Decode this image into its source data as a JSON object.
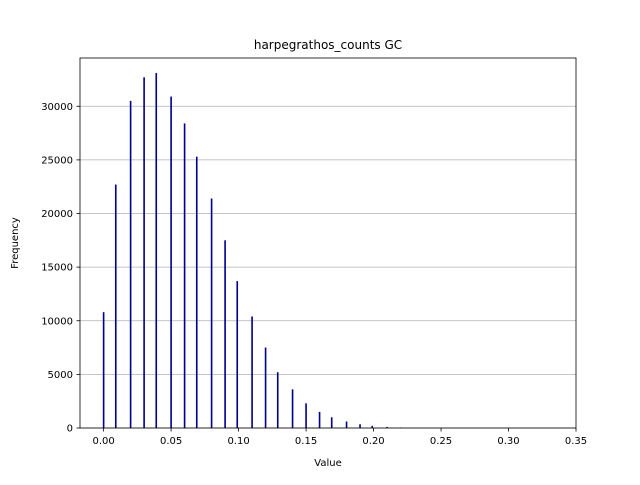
{
  "chart_data": {
    "type": "bar",
    "title": "harpegrathos_counts GC",
    "xlabel": "Value",
    "ylabel": "Frequency",
    "xlim": [
      -0.0175,
      0.35
    ],
    "ylim": [
      0,
      34500
    ],
    "xticks": [
      0.0,
      0.05,
      0.1,
      0.15,
      0.2,
      0.25,
      0.3,
      0.35
    ],
    "xtick_labels": [
      "0.00",
      "0.05",
      "0.10",
      "0.15",
      "0.20",
      "0.25",
      "0.30",
      "0.35"
    ],
    "yticks": [
      0,
      5000,
      10000,
      15000,
      20000,
      25000,
      30000
    ],
    "ytick_labels": [
      "0",
      "5000",
      "10000",
      "15000",
      "20000",
      "25000",
      "30000"
    ],
    "grid": {
      "y": true,
      "x": false
    },
    "bar_color": "#00008b",
    "bin_width": 0.0012,
    "x": [
      0.0,
      0.009,
      0.02,
      0.03,
      0.039,
      0.05,
      0.06,
      0.069,
      0.08,
      0.09,
      0.099,
      0.11,
      0.12,
      0.129,
      0.14,
      0.15,
      0.16,
      0.169,
      0.18,
      0.19,
      0.199,
      0.21,
      0.22
    ],
    "values": [
      10800,
      22700,
      30500,
      32700,
      33100,
      30900,
      28400,
      25300,
      21400,
      17500,
      13700,
      10400,
      7500,
      5200,
      3600,
      2300,
      1500,
      1000,
      600,
      350,
      200,
      100,
      50
    ]
  }
}
